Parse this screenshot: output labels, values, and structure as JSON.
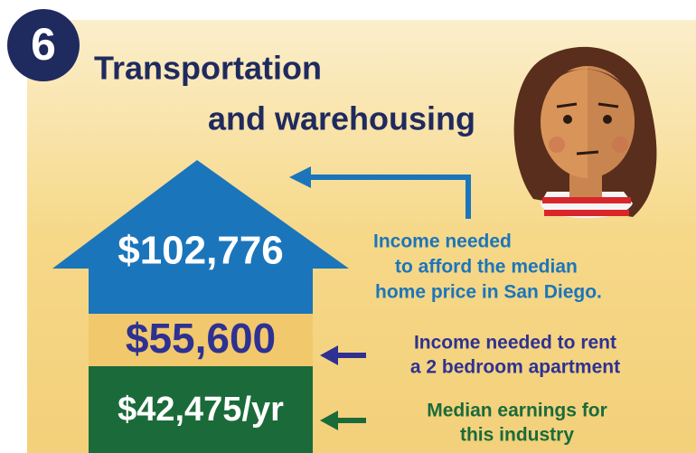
{
  "badge": "6",
  "title": {
    "line1": "Transportation",
    "line2": "and warehousing"
  },
  "levels": [
    {
      "amount": "$102,776",
      "caption": [
        "Income needed",
        "to afford the median",
        "home price in San Diego."
      ]
    },
    {
      "amount": "$55,600",
      "caption": [
        "Income needed to rent",
        "a 2 bedroom apartment"
      ]
    },
    {
      "amount": "$42,475/yr",
      "caption": [
        "Median earnings for",
        "this industry"
      ]
    }
  ]
}
